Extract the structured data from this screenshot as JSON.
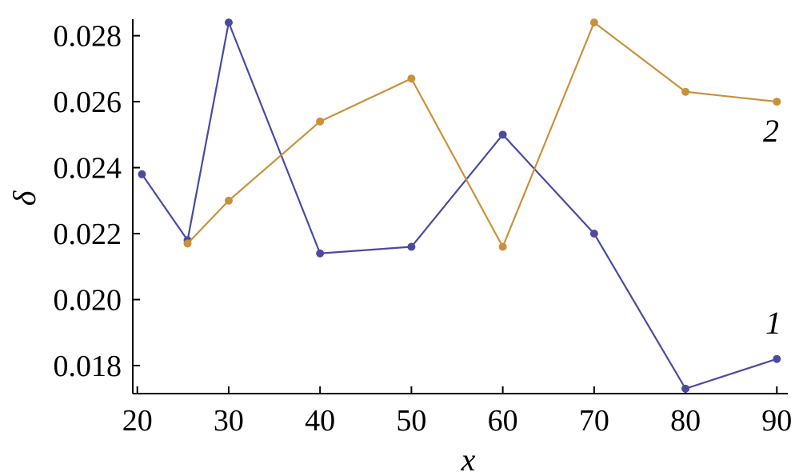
{
  "chart_data": {
    "type": "line",
    "xlabel": "x",
    "ylabel": "δ",
    "xlim": [
      19.5,
      91.2
    ],
    "ylim": [
      0.01715,
      0.0285
    ],
    "xticks": [
      "20",
      "30",
      "40",
      "50",
      "60",
      "70",
      "80",
      "90"
    ],
    "yticks": [
      "0.018",
      "0.020",
      "0.022",
      "0.024",
      "0.026",
      "0.028"
    ],
    "grid": false,
    "series": [
      {
        "name": "1",
        "color": "#4b4aa0",
        "x": [
          20.5,
          25.5,
          30,
          40,
          50,
          60,
          70,
          80,
          90
        ],
        "y": [
          0.0238,
          0.0218,
          0.0284,
          0.0214,
          0.0216,
          0.025,
          0.022,
          0.0173,
          0.0182
        ]
      },
      {
        "name": "2",
        "color": "#c8913c",
        "x": [
          25.5,
          30,
          40,
          50,
          60,
          70,
          80,
          90
        ],
        "y": [
          0.0217,
          0.023,
          0.0254,
          0.0267,
          0.0216,
          0.0284,
          0.0263,
          0.026
        ]
      }
    ]
  }
}
